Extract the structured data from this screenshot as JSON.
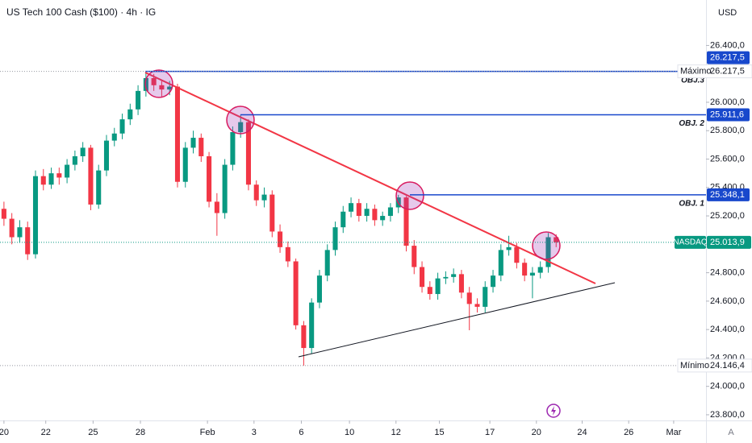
{
  "chart_data": {
    "type": "candlestick",
    "title": "US Tech 100 Cash ($100) · 4h · IG",
    "currency": "USD",
    "scale_button": "A",
    "up_color": "#089981",
    "down_color": "#f23645",
    "xlim": [
      0,
      89.5
    ],
    "ylim": [
      23760,
      26720
    ],
    "xticks": [
      {
        "value": 0.5,
        "label": "20"
      },
      {
        "value": 5.8,
        "label": "22"
      },
      {
        "value": 11.8,
        "label": "25"
      },
      {
        "value": 17.8,
        "label": "28"
      },
      {
        "value": 26.3,
        "label": "Feb"
      },
      {
        "value": 32.2,
        "label": "3"
      },
      {
        "value": 38.2,
        "label": "6"
      },
      {
        "value": 44.3,
        "label": "10"
      },
      {
        "value": 50.2,
        "label": "12"
      },
      {
        "value": 55.7,
        "label": "15"
      },
      {
        "value": 62.1,
        "label": "17"
      },
      {
        "value": 68,
        "label": "20"
      },
      {
        "value": 73.8,
        "label": "24"
      },
      {
        "value": 79.7,
        "label": "26"
      },
      {
        "value": 85.4,
        "label": "Mar"
      }
    ],
    "yticks": [
      {
        "value": 23800,
        "label": "23.800,0"
      },
      {
        "value": 24000,
        "label": "24.000,0"
      },
      {
        "value": 24200,
        "label": "24.200,0"
      },
      {
        "value": 24400,
        "label": "24.400,0"
      },
      {
        "value": 24600,
        "label": "24.600,0"
      },
      {
        "value": 24800,
        "label": "24.800,0"
      },
      {
        "value": 25000,
        "label": "25.000,0"
      },
      {
        "value": 25200,
        "label": "25.200,0"
      },
      {
        "value": 25400,
        "label": "25.400,0"
      },
      {
        "value": 25600,
        "label": "25.600,0"
      },
      {
        "value": 25800,
        "label": "25.800,0"
      },
      {
        "value": 26000,
        "label": "26.000,0"
      },
      {
        "value": 26200,
        "label": "26.200,0"
      },
      {
        "value": 26400,
        "label": "26.400,0"
      }
    ],
    "open": [
      25250,
      25180,
      25050,
      25120,
      24930,
      25480,
      25420,
      25500,
      25470,
      25560,
      25620,
      25680,
      25280,
      25520,
      25730,
      25780,
      25880,
      25950,
      26080,
      26170,
      26120,
      26090,
      26110,
      25440,
      25680,
      25750,
      25620,
      25300,
      25220,
      25560,
      25790,
      25860,
      25420,
      25310,
      25350,
      25090,
      24980,
      24880,
      24430,
      24270,
      24590,
      24780,
      24960,
      25120,
      25230,
      25290,
      25200,
      25250,
      25170,
      25200,
      25260,
      25330,
      24990,
      24840,
      24700,
      24650,
      24760,
      24770,
      24790,
      24660,
      24580,
      24560,
      24700,
      24780,
      24960,
      24980,
      24870,
      24780,
      24800,
      24840,
      25050
    ],
    "high": [
      25300,
      25220,
      25170,
      25160,
      25520,
      25530,
      25540,
      25540,
      25600,
      25660,
      25720,
      25700,
      25560,
      25770,
      25820,
      25920,
      25990,
      26120,
      26217.5,
      26200,
      26150,
      26150,
      26130,
      25720,
      25800,
      25780,
      25650,
      25360,
      25600,
      25830,
      25911.6,
      25880,
      25450,
      25400,
      25380,
      25140,
      25020,
      24900,
      24460,
      24620,
      24820,
      25000,
      25160,
      25270,
      25330,
      25320,
      25290,
      25280,
      25230,
      25290,
      25348.1,
      25340,
      25030,
      24880,
      24740,
      24800,
      24810,
      24830,
      24820,
      24700,
      24620,
      24740,
      24820,
      25000,
      25060,
      25010,
      24900,
      24840,
      24880,
      25080,
      25070
    ],
    "low": [
      25130,
      25000,
      25010,
      24890,
      24900,
      25380,
      25390,
      25420,
      25430,
      25520,
      25580,
      25240,
      25250,
      25480,
      25690,
      25740,
      25840,
      25910,
      26040,
      26080,
      26040,
      26050,
      25400,
      25400,
      25640,
      25580,
      25260,
      25060,
      25180,
      25520,
      25750,
      25380,
      25270,
      25260,
      25050,
      24940,
      24840,
      24400,
      24146.4,
      24230,
      24550,
      24740,
      24920,
      25080,
      25190,
      25160,
      25160,
      25130,
      25130,
      25160,
      25220,
      24950,
      24790,
      24660,
      24610,
      24610,
      24720,
      24730,
      24620,
      24395,
      24520,
      24520,
      24660,
      24740,
      24920,
      24830,
      24740,
      24620,
      24760,
      24800,
      24980
    ],
    "close": [
      25180,
      25050,
      25120,
      24930,
      25480,
      25420,
      25500,
      25470,
      25560,
      25620,
      25680,
      25280,
      25520,
      25730,
      25780,
      25880,
      25950,
      26080,
      26170,
      26120,
      26090,
      26110,
      25440,
      25680,
      25750,
      25620,
      25300,
      25220,
      25560,
      25790,
      25860,
      25420,
      25310,
      25350,
      25090,
      24980,
      24880,
      24430,
      24270,
      24590,
      24780,
      24960,
      25120,
      25230,
      25290,
      25200,
      25250,
      25170,
      25200,
      25260,
      25330,
      24990,
      24840,
      24700,
      24650,
      24760,
      24770,
      24790,
      24660,
      24580,
      24560,
      24700,
      24780,
      24960,
      24980,
      24870,
      24780,
      24800,
      24840,
      25050,
      25013.9
    ],
    "levels": [
      {
        "text": "OBJ.3",
        "value": 26217.5,
        "label": "26.217,5",
        "kind": "target"
      },
      {
        "text": "OBJ. 2",
        "value": 25911.6,
        "label": "25.911,6",
        "kind": "target"
      },
      {
        "text": "OBJ. 1",
        "value": 25348.1,
        "label": "25.348,1",
        "kind": "target"
      },
      {
        "text": "Máximo",
        "value": 26217.5,
        "label": "26.217,5",
        "kind": "extreme"
      },
      {
        "text": "Mínimo",
        "value": 24146.4,
        "label": "24.146,4",
        "kind": "extreme"
      }
    ],
    "last_price": {
      "name": "NASDAQ",
      "value": 25013.9,
      "label": "25.013,9"
    }
  }
}
